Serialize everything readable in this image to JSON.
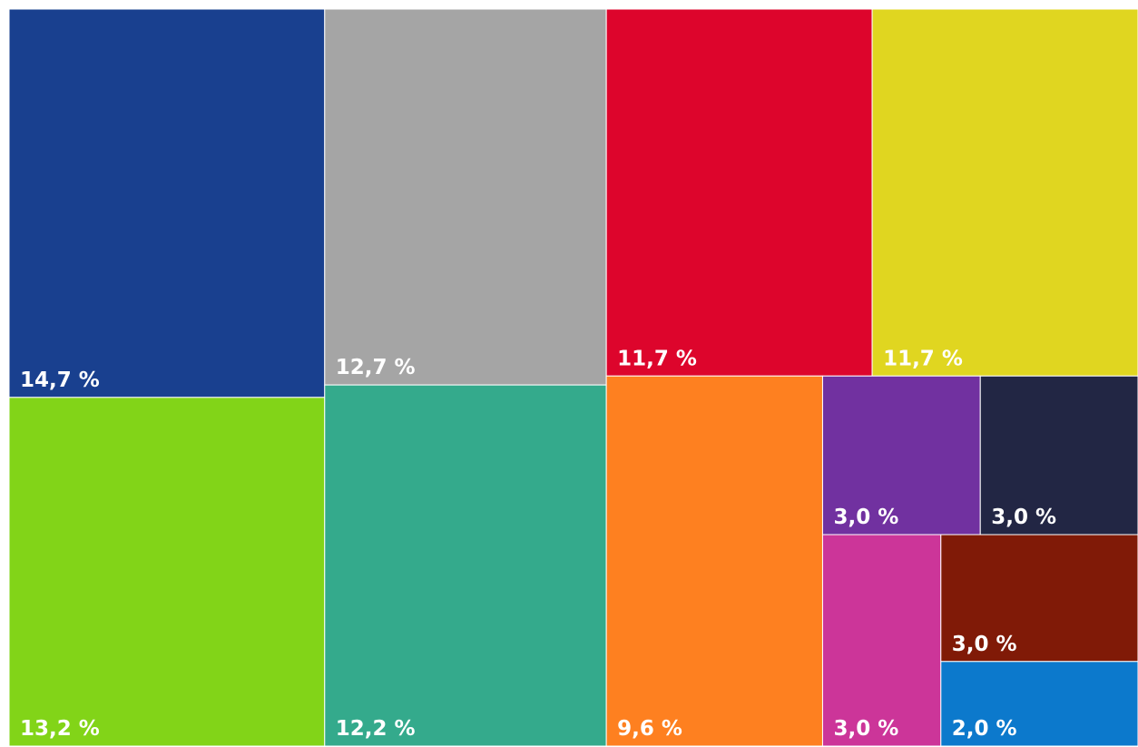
{
  "chart_data": {
    "type": "treemap",
    "tiles": [
      {
        "label": "14,7 %",
        "value": 14.7,
        "color": "#19408f"
      },
      {
        "label": "13,2 %",
        "value": 13.2,
        "color": "#82d418"
      },
      {
        "label": "12,7 %",
        "value": 12.7,
        "color": "#a5a5a5"
      },
      {
        "label": "12,2 %",
        "value": 12.2,
        "color": "#34aa8c"
      },
      {
        "label": "11,7 %",
        "value": 11.7,
        "color": "#dd052c"
      },
      {
        "label": "11,7 %",
        "value": 11.7,
        "color": "#e0d620"
      },
      {
        "label": "9,6 %",
        "value": 9.6,
        "color": "#fe8020"
      },
      {
        "label": "3,0 %",
        "value": 3.0,
        "color": "#7131a0"
      },
      {
        "label": "3,0 %",
        "value": 3.0,
        "color": "#222644"
      },
      {
        "label": "3,0 %",
        "value": 3.0,
        "color": "#cc3599"
      },
      {
        "label": "3,0 %",
        "value": 3.0,
        "color": "#801a07"
      },
      {
        "label": "2,0 %",
        "value": 2.0,
        "color": "#0c79cc"
      }
    ]
  }
}
